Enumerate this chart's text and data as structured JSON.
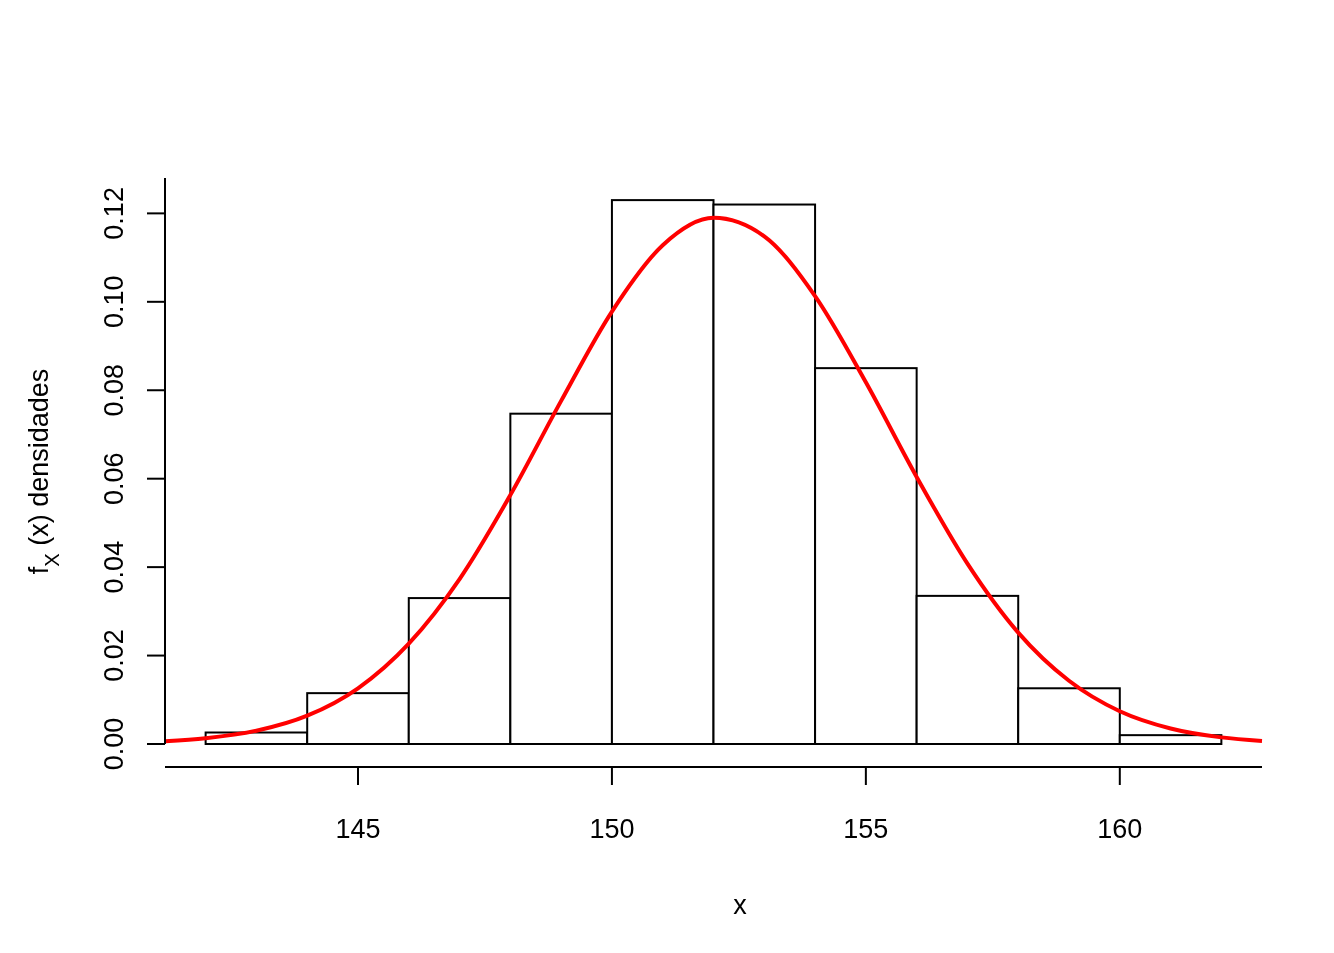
{
  "chart_data": {
    "type": "histogram",
    "xlabel": "x",
    "ylabel": "f$_{X}$ (x)  densidades",
    "bins": [
      142,
      144,
      146,
      148,
      150,
      152,
      154,
      156,
      158,
      160,
      162
    ],
    "values": [
      0.0026,
      0.0115,
      0.033,
      0.0747,
      0.123,
      0.122,
      0.085,
      0.0335,
      0.0126,
      0.002
    ],
    "color": "#ffffff",
    "series": [
      {
        "type": "line",
        "color": "#ff0000",
        "x": [
          141.2,
          142,
          143,
          144,
          145,
          146,
          147,
          148,
          149,
          150,
          151,
          152,
          153,
          154,
          155,
          156,
          157,
          158,
          159,
          160,
          161,
          162,
          162.8
        ],
        "values": [
          0.0006,
          0.0013,
          0.003,
          0.0064,
          0.0126,
          0.0227,
          0.0373,
          0.0563,
          0.0776,
          0.0978,
          0.1128,
          0.119,
          0.1148,
          0.1013,
          0.0818,
          0.0604,
          0.0408,
          0.0252,
          0.0143,
          0.0074,
          0.0035,
          0.0015,
          0.0007
        ]
      }
    ],
    "xlim": [
      141.2,
      162.8
    ],
    "ylim": [
      0,
      0.128
    ],
    "xticks": [
      145,
      150,
      155,
      160
    ],
    "yticks": [
      {
        "value": 0,
        "label": "0.00"
      },
      {
        "value": 0.02,
        "label": "0.02"
      },
      {
        "value": 0.04,
        "label": "0.04"
      },
      {
        "value": 0.06,
        "label": "0.06"
      },
      {
        "value": 0.08,
        "label": "0.08"
      },
      {
        "value": 0.1,
        "label": "0.10"
      },
      {
        "value": 0.12,
        "label": "0.12"
      }
    ],
    "grid": false
  }
}
